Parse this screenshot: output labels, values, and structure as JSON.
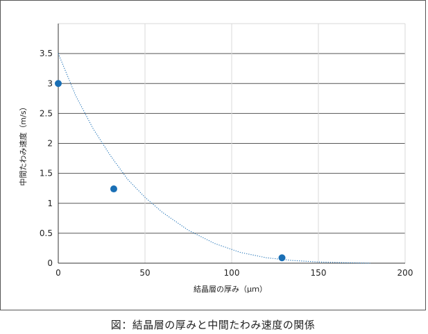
{
  "chart_data": {
    "type": "scatter",
    "xlabel": "結晶層の厚み（μｍ）",
    "ylabel": "中間たわみ速度（m/s）",
    "xlim": [
      0,
      200
    ],
    "ylim": [
      0,
      4
    ],
    "x_ticks": [
      "0",
      "50",
      "100",
      "150",
      "200"
    ],
    "y_ticks": [
      "0",
      "0.5",
      "1",
      "1.5",
      "2",
      "2.5",
      "3",
      "3.5"
    ],
    "grid": true,
    "series": [
      {
        "marker": "circle",
        "color": "#1a6fb5",
        "points": [
          {
            "x": 0,
            "y": 3.0
          },
          {
            "x": 32,
            "y": 1.24
          },
          {
            "x": 129,
            "y": 0.09
          }
        ]
      }
    ],
    "trendline": {
      "style": "dotted",
      "color": "#1a6fb5",
      "x_range": [
        0,
        180
      ],
      "points": [
        {
          "x": 0,
          "y": 3.5
        },
        {
          "x": 10,
          "y": 2.8
        },
        {
          "x": 20,
          "y": 2.25
        },
        {
          "x": 30,
          "y": 1.8
        },
        {
          "x": 40,
          "y": 1.4
        },
        {
          "x": 50,
          "y": 1.1
        },
        {
          "x": 60,
          "y": 0.85
        },
        {
          "x": 75,
          "y": 0.55
        },
        {
          "x": 90,
          "y": 0.33
        },
        {
          "x": 105,
          "y": 0.18
        },
        {
          "x": 120,
          "y": 0.09
        },
        {
          "x": 135,
          "y": 0.045
        },
        {
          "x": 150,
          "y": 0.02
        },
        {
          "x": 165,
          "y": 0.008
        },
        {
          "x": 180,
          "y": 0.0
        }
      ]
    }
  },
  "caption": "図：結晶層の厚みと中間たわみ速度の関係"
}
